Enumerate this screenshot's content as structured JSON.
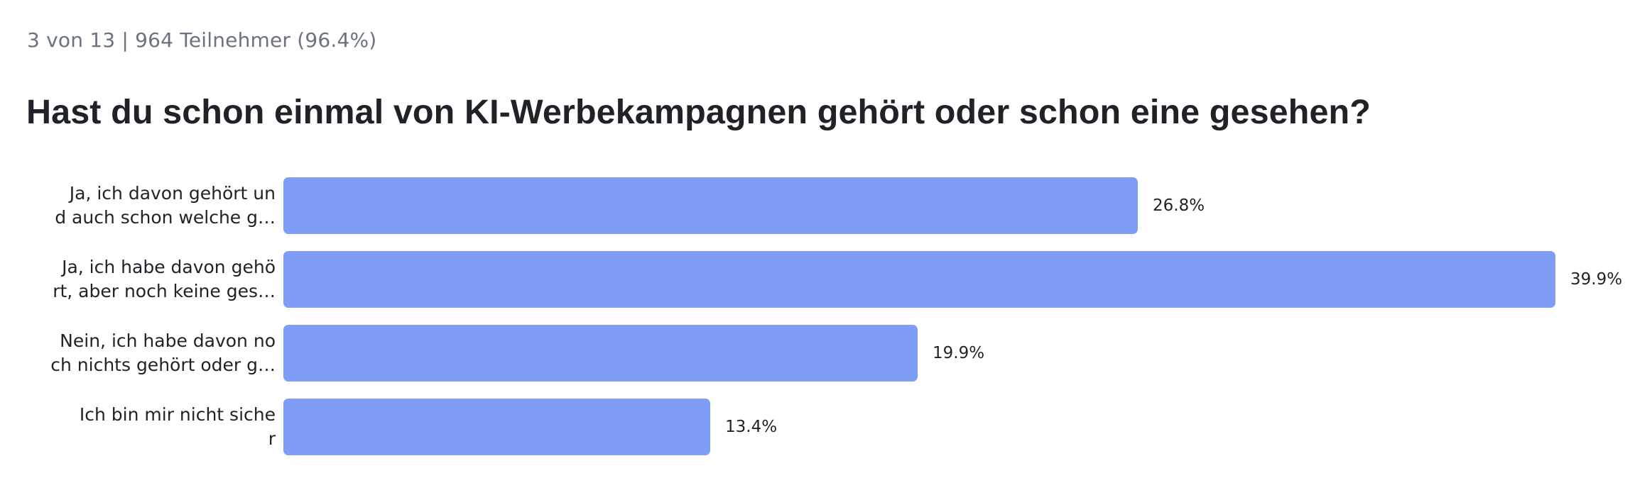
{
  "meta": "3 von 13 | 964 Teilnehmer (96.4%)",
  "question": "Hast du schon einmal von KI-Werbekampagnen gehört oder schon eine gesehen?",
  "colors": {
    "bar": "#7f9df7",
    "text": "#1f2328",
    "meta": "#6b7280"
  },
  "chart_data": {
    "type": "bar",
    "orientation": "horizontal",
    "categories": [
      [
        "Ja, ich davon gehört un",
        "d auch schon welche g…"
      ],
      [
        "Ja, ich habe davon gehö",
        "rt, aber noch keine ges…"
      ],
      [
        "Nein, ich habe davon no",
        "ch nichts gehört oder g…"
      ],
      [
        "Ich bin mir nicht siche",
        "r"
      ]
    ],
    "values": [
      26.8,
      39.9,
      19.9,
      13.4
    ],
    "value_labels": [
      "26.8%",
      "39.9%",
      "19.9%",
      "13.4%"
    ],
    "grid": false
  }
}
